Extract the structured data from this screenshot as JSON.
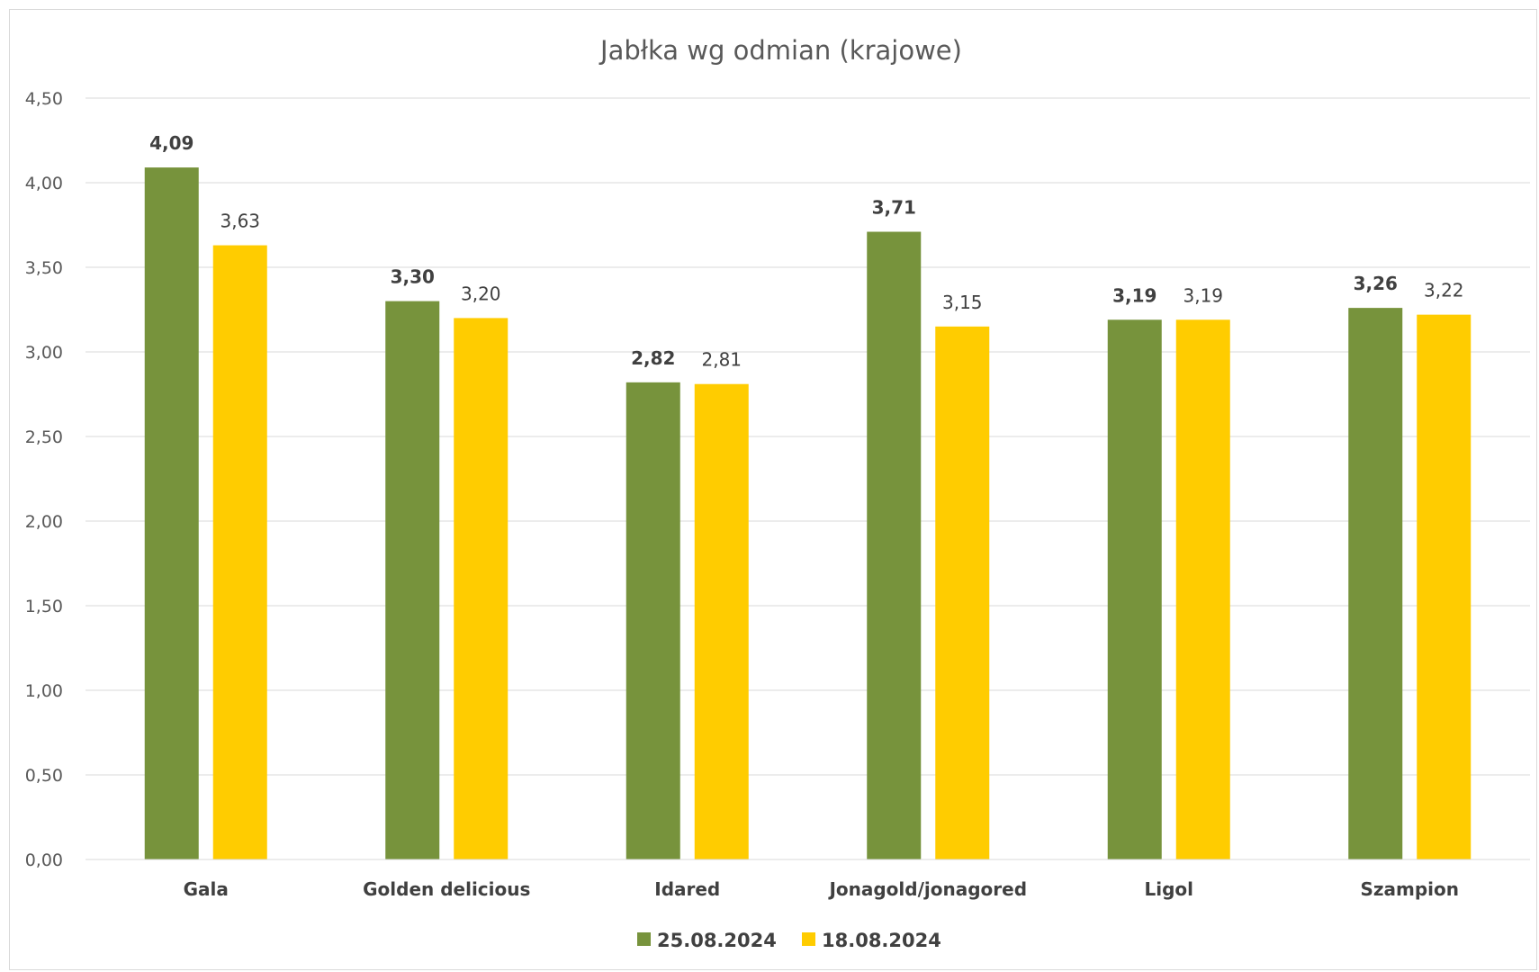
{
  "chart_data": {
    "type": "bar",
    "title": "Jabłka wg odmian (krajowe)",
    "categories": [
      "Gala",
      "Golden delicious",
      "Idared",
      "Jonagold/jonagored",
      "Ligol",
      "Szampion"
    ],
    "series": [
      {
        "name": "25.08.2024",
        "color": "#77933C",
        "values": [
          4.09,
          3.3,
          2.82,
          3.71,
          3.19,
          3.26
        ],
        "labels": [
          "4,09",
          "3,30",
          "2,82",
          "3,71",
          "3,19",
          "3,26"
        ]
      },
      {
        "name": "18.08.2024",
        "color": "#FFCC00",
        "values": [
          3.63,
          3.2,
          2.81,
          3.15,
          3.19,
          3.22
        ],
        "labels": [
          "3,63",
          "3,20",
          "2,81",
          "3,15",
          "3,19",
          "3,22"
        ]
      }
    ],
    "ylim": [
      0,
      4.5
    ],
    "yticks": [
      0,
      0.5,
      1.0,
      1.5,
      2.0,
      2.5,
      3.0,
      3.5,
      4.0,
      4.5
    ],
    "ytick_labels": [
      "0,00",
      "0,50",
      "1,00",
      "1,50",
      "2,00",
      "2,50",
      "3,00",
      "3,50",
      "4,00",
      "4,50"
    ],
    "grid": true,
    "legend": "bottom"
  }
}
